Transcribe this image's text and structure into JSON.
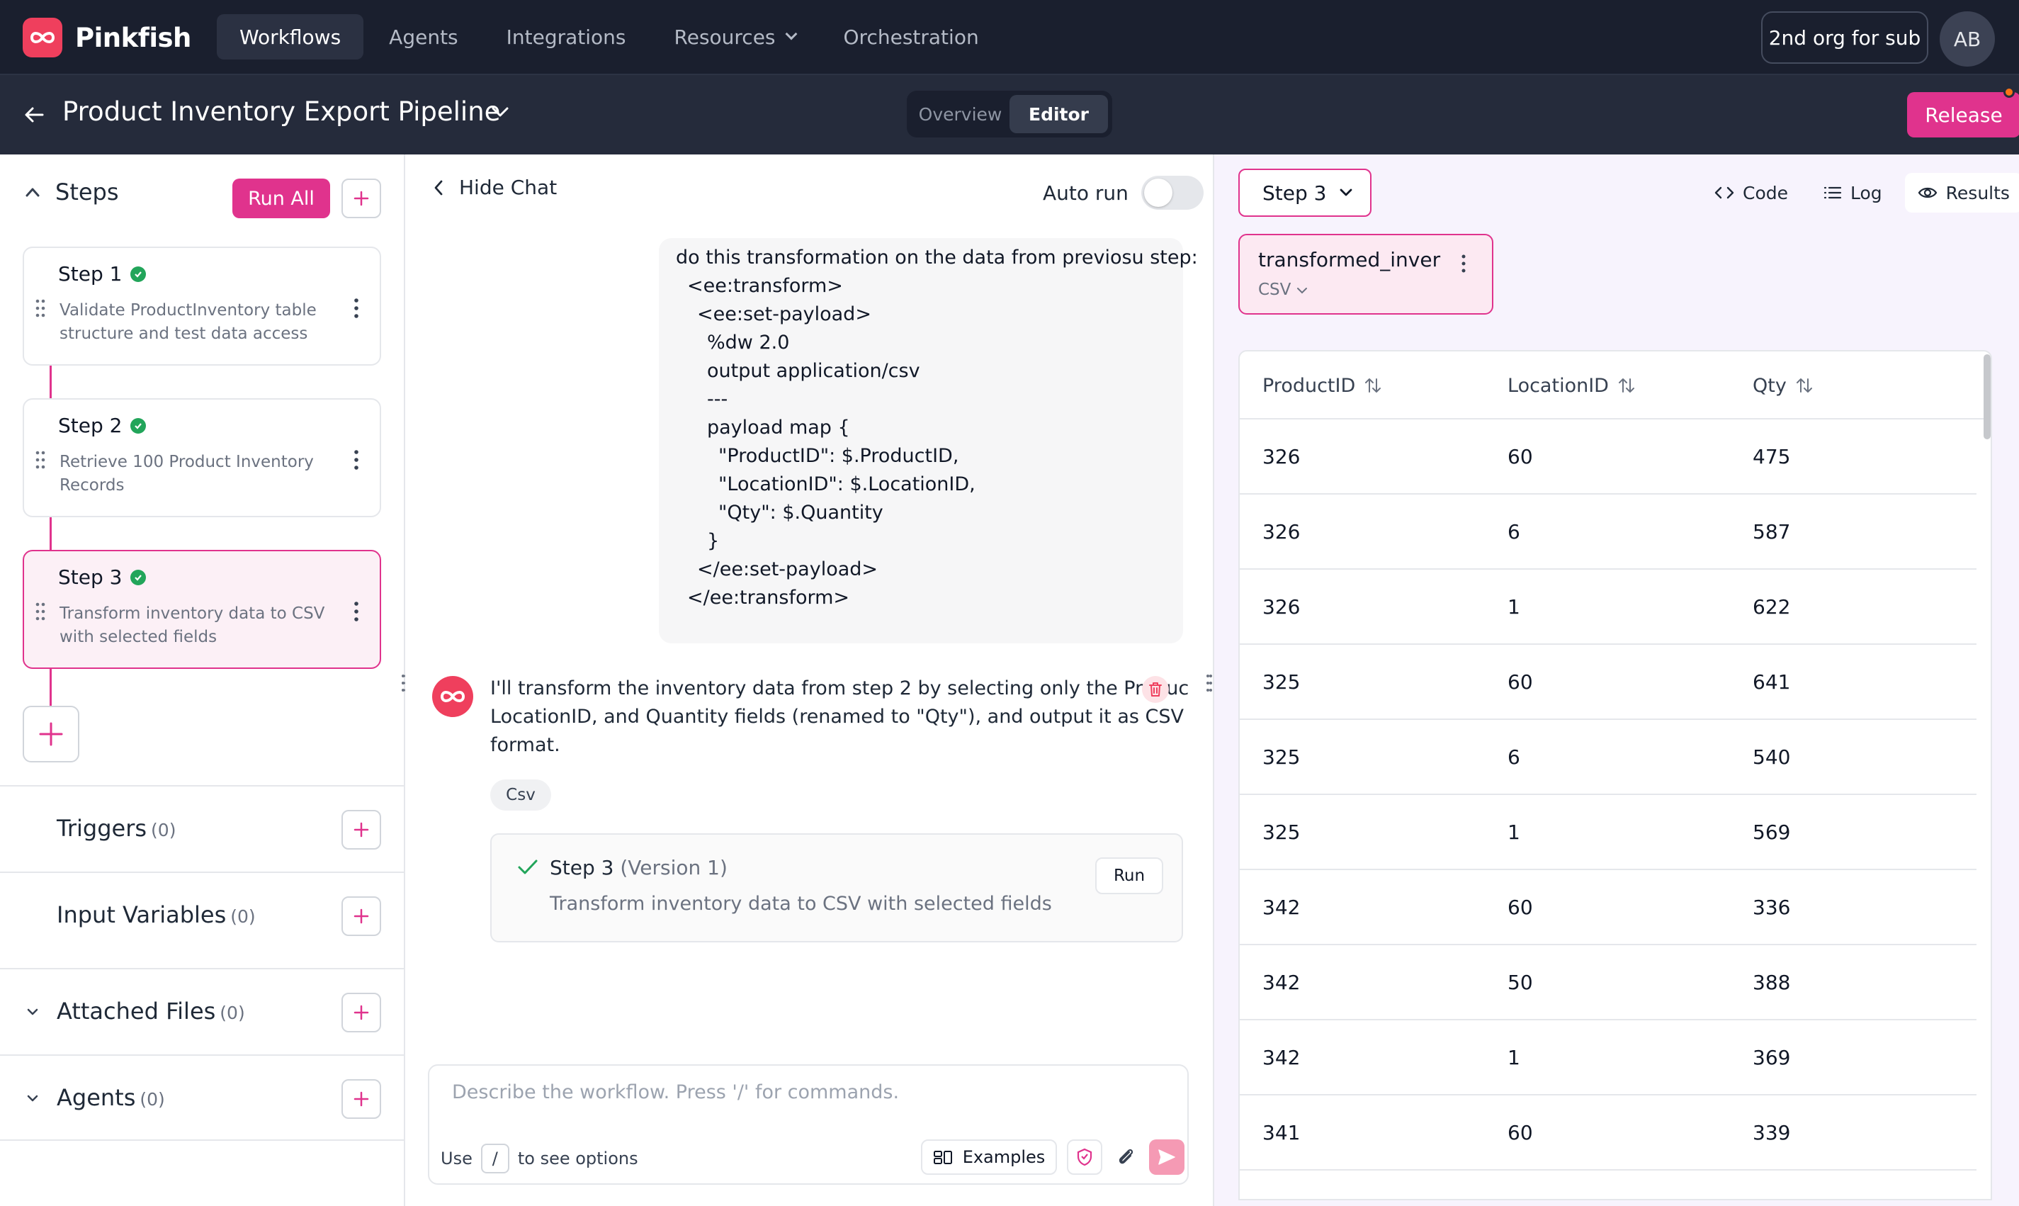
{
  "app": {
    "name": "Pinkfish"
  },
  "nav": {
    "items": [
      {
        "label": "Workflows",
        "active": true
      },
      {
        "label": "Agents",
        "active": false
      },
      {
        "label": "Integrations",
        "active": false
      },
      {
        "label": "Resources",
        "active": false
      },
      {
        "label": "Orchestration",
        "active": false
      }
    ],
    "org_label": "2nd org for sub",
    "avatar_initials": "AB"
  },
  "workflow": {
    "title": "Product Inventory Export Pipeline",
    "views": [
      "Overview",
      "Editor"
    ],
    "active_view": "Editor",
    "release_label": "Release"
  },
  "sidebar": {
    "steps_title": "Steps",
    "run_all_label": "Run All",
    "steps": [
      {
        "name": "Step 1",
        "desc_1": "Validate ProductInventory table",
        "desc_2": "structure and test data access"
      },
      {
        "name": "Step 2",
        "desc_1": "Retrieve 100 Product Inventory",
        "desc_2": "Records"
      },
      {
        "name": "Step 3",
        "desc_1": "Transform inventory data to CSV",
        "desc_2": "with selected fields"
      }
    ],
    "sections": [
      {
        "label": "Triggers",
        "count": "(0)"
      },
      {
        "label": "Input Variables",
        "count": "(0)"
      },
      {
        "label": "Attached Files",
        "count": "(0)"
      },
      {
        "label": "Agents",
        "count": "(0)"
      }
    ]
  },
  "chat": {
    "hide_label": "Hide Chat",
    "autorun_label": "Auto run",
    "user_message_lines": [
      "do this transformation on the data from previosu step:",
      "<ee:transform>",
      "<ee:set-payload>",
      "%dw 2.0",
      "output application/csv",
      "---",
      "payload map {",
      "\"ProductID\": $.ProductID,",
      "\"LocationID\": $.LocationID,",
      "\"Qty\": $.Quantity",
      "}",
      "</ee:set-payload>",
      "</ee:transform>"
    ],
    "bot_message_lines": [
      "I'll transform the inventory data from step 2 by selecting only the Produc",
      "LocationID, and Quantity fields (renamed to \"Qty\"), and output it as CSV",
      "format."
    ],
    "chip_label": "Csv",
    "version_card": {
      "step": "Step 3",
      "version": "(Version 1)",
      "desc": "Transform inventory data to CSV with selected fields",
      "run_label": "Run"
    },
    "input": {
      "placeholder": "Describe the workflow. Press '/' for commands.",
      "hint_prefix": "Use",
      "hint_key": "/",
      "hint_suffix": "to see options",
      "examples_label": "Examples"
    }
  },
  "results": {
    "step_selected": "Step 3",
    "tabs": [
      {
        "label": "Code",
        "active": false
      },
      {
        "label": "Log",
        "active": false
      },
      {
        "label": "Results",
        "active": true
      }
    ],
    "file": {
      "name": "transformed_inver",
      "type": "CSV"
    },
    "columns": [
      "ProductID",
      "LocationID",
      "Qty"
    ],
    "rows": [
      [
        "326",
        "60",
        "475"
      ],
      [
        "326",
        "6",
        "587"
      ],
      [
        "326",
        "1",
        "622"
      ],
      [
        "325",
        "60",
        "641"
      ],
      [
        "325",
        "6",
        "540"
      ],
      [
        "325",
        "1",
        "569"
      ],
      [
        "342",
        "60",
        "336"
      ],
      [
        "342",
        "50",
        "388"
      ],
      [
        "342",
        "1",
        "369"
      ],
      [
        "341",
        "60",
        "339"
      ]
    ]
  },
  "colors": {
    "accent": "#e0338d",
    "brand": "#ef3f5d",
    "topbar": "#1a1f2e",
    "success": "#22a55a"
  }
}
